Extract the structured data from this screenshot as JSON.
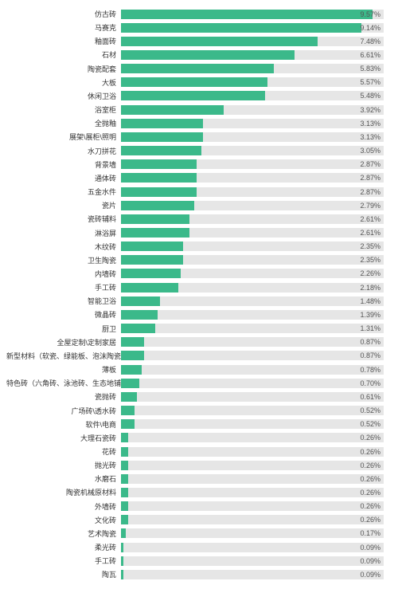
{
  "chart": {
    "type": "bar",
    "orientation": "horizontal",
    "max_value": 10.0,
    "bar_color": "#3bb98a",
    "track_color": "#e6e6e6",
    "background_color": "#ffffff",
    "label_color": "#333333",
    "value_color": "#555555",
    "label_fontsize": 9,
    "value_fontsize": 9,
    "value_suffix": "%",
    "items": [
      {
        "label": "仿古砖",
        "value": 9.57
      },
      {
        "label": "马赛克",
        "value": 9.14
      },
      {
        "label": "釉面砖",
        "value": 7.48
      },
      {
        "label": "石材",
        "value": 6.61
      },
      {
        "label": "陶瓷配套",
        "value": 5.83
      },
      {
        "label": "大板",
        "value": 5.57
      },
      {
        "label": "休闲卫浴",
        "value": 5.48
      },
      {
        "label": "浴室柜",
        "value": 3.92
      },
      {
        "label": "全抛釉",
        "value": 3.13
      },
      {
        "label": "展架\\展柜\\照明",
        "value": 3.13
      },
      {
        "label": "水刀拼花",
        "value": 3.05
      },
      {
        "label": "背景墙",
        "value": 2.87
      },
      {
        "label": "通体砖",
        "value": 2.87
      },
      {
        "label": "五金水件",
        "value": 2.87
      },
      {
        "label": "瓷片",
        "value": 2.79
      },
      {
        "label": "瓷砖辅料",
        "value": 2.61
      },
      {
        "label": "淋浴屏",
        "value": 2.61
      },
      {
        "label": "木纹砖",
        "value": 2.35
      },
      {
        "label": "卫生陶瓷",
        "value": 2.35
      },
      {
        "label": "内墙砖",
        "value": 2.26
      },
      {
        "label": "手工砖",
        "value": 2.18
      },
      {
        "label": "智能卫浴",
        "value": 1.48
      },
      {
        "label": "微晶砖",
        "value": 1.39
      },
      {
        "label": "厨卫",
        "value": 1.31
      },
      {
        "label": "全屋定制\\定制家居",
        "value": 0.87
      },
      {
        "label": "新型材料（软瓷、绿能板、泡沫陶瓷等）",
        "value": 0.87
      },
      {
        "label": "薄板",
        "value": 0.78
      },
      {
        "label": "特色砖（六角砖、泳池砖、生态地铺石等）",
        "value": 0.7
      },
      {
        "label": "瓷抛砖",
        "value": 0.61
      },
      {
        "label": "广场砖\\透水砖",
        "value": 0.52
      },
      {
        "label": "软件\\电商",
        "value": 0.52
      },
      {
        "label": "大理石瓷砖",
        "value": 0.26
      },
      {
        "label": "花砖",
        "value": 0.26
      },
      {
        "label": "抛光砖",
        "value": 0.26
      },
      {
        "label": "水磨石",
        "value": 0.26
      },
      {
        "label": "陶瓷机械原材料",
        "value": 0.26
      },
      {
        "label": "外墙砖",
        "value": 0.26
      },
      {
        "label": "文化砖",
        "value": 0.26
      },
      {
        "label": "艺术陶瓷",
        "value": 0.17
      },
      {
        "label": "柔光砖",
        "value": 0.09
      },
      {
        "label": "手工砖",
        "value": 0.09
      },
      {
        "label": "陶瓦",
        "value": 0.09
      }
    ]
  }
}
